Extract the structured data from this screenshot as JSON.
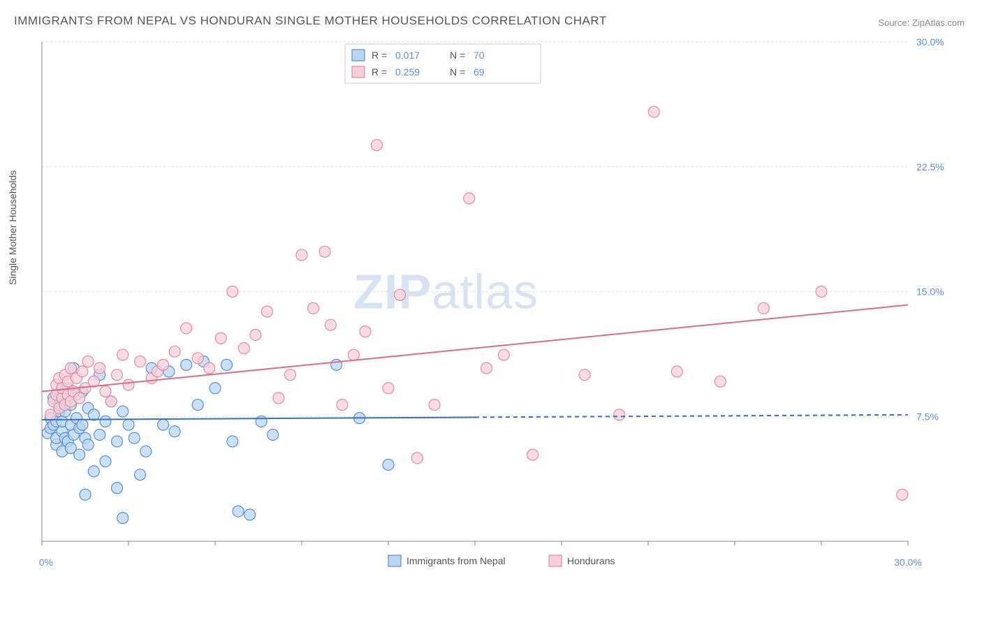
{
  "title": "IMMIGRANTS FROM NEPAL VS HONDURAN SINGLE MOTHER HOUSEHOLDS CORRELATION CHART",
  "source_label": "Source:",
  "source_name": "ZipAtlas.com",
  "y_axis_label": "Single Mother Households",
  "watermark_bold": "ZIP",
  "watermark_light": "atlas",
  "chart": {
    "type": "scatter",
    "xlim": [
      0,
      30
    ],
    "ylim": [
      0,
      30
    ],
    "x_ticks": [
      0,
      30
    ],
    "x_tick_labels": [
      "0.0%",
      "30.0%"
    ],
    "x_minor_ticks": [
      0,
      3,
      6,
      9,
      12,
      15,
      18,
      21,
      24,
      27,
      30
    ],
    "y_ticks": [
      7.5,
      15.0,
      22.5,
      30.0
    ],
    "y_tick_labels": [
      "7.5%",
      "15.0%",
      "22.5%",
      "30.0%"
    ],
    "background_color": "#ffffff",
    "grid_color": "#dddddd",
    "axis_color": "#888888",
    "label_color": "#5b8fd6",
    "series": [
      {
        "name": "Immigrants from Nepal",
        "marker_fill": "#bad6f2",
        "marker_stroke": "#5b8fd6",
        "marker_radius": 8,
        "r_value": "0.017",
        "n_value": "70",
        "trend_line": {
          "x1": 0,
          "y1": 7.3,
          "x2": 30,
          "y2": 7.6,
          "color": "#3a6fc4",
          "width": 2,
          "solid_until_x": 15
        },
        "points": [
          [
            0.2,
            6.5
          ],
          [
            0.3,
            7.4
          ],
          [
            0.3,
            6.8
          ],
          [
            0.4,
            7.0
          ],
          [
            0.4,
            8.6
          ],
          [
            0.5,
            7.2
          ],
          [
            0.5,
            5.8
          ],
          [
            0.5,
            6.2
          ],
          [
            0.6,
            7.8
          ],
          [
            0.6,
            8.2
          ],
          [
            0.6,
            8.6
          ],
          [
            0.7,
            6.6
          ],
          [
            0.7,
            7.2
          ],
          [
            0.7,
            5.4
          ],
          [
            0.8,
            7.8
          ],
          [
            0.8,
            6.2
          ],
          [
            0.8,
            8.4
          ],
          [
            0.9,
            8.8
          ],
          [
            0.9,
            6.0
          ],
          [
            0.9,
            9.2
          ],
          [
            1.0,
            7.0
          ],
          [
            1.0,
            5.6
          ],
          [
            1.0,
            8.2
          ],
          [
            1.1,
            6.4
          ],
          [
            1.1,
            10.4
          ],
          [
            1.2,
            7.4
          ],
          [
            1.2,
            8.8
          ],
          [
            1.3,
            6.8
          ],
          [
            1.3,
            5.2
          ],
          [
            1.4,
            7.0
          ],
          [
            1.4,
            9.0
          ],
          [
            1.5,
            6.2
          ],
          [
            1.5,
            2.8
          ],
          [
            1.6,
            8.0
          ],
          [
            1.6,
            5.8
          ],
          [
            1.8,
            7.6
          ],
          [
            1.8,
            4.2
          ],
          [
            2.0,
            6.4
          ],
          [
            2.0,
            10.0
          ],
          [
            2.2,
            7.2
          ],
          [
            2.2,
            4.8
          ],
          [
            2.4,
            8.4
          ],
          [
            2.6,
            6.0
          ],
          [
            2.6,
            3.2
          ],
          [
            2.8,
            7.8
          ],
          [
            2.8,
            1.4
          ],
          [
            3.0,
            7.0
          ],
          [
            3.2,
            6.2
          ],
          [
            3.4,
            4.0
          ],
          [
            3.6,
            5.4
          ],
          [
            3.8,
            10.4
          ],
          [
            4.2,
            7.0
          ],
          [
            4.4,
            10.2
          ],
          [
            4.6,
            6.6
          ],
          [
            5.0,
            10.6
          ],
          [
            5.4,
            8.2
          ],
          [
            5.6,
            10.8
          ],
          [
            6.0,
            9.2
          ],
          [
            6.4,
            10.6
          ],
          [
            6.6,
            6.0
          ],
          [
            6.8,
            1.8
          ],
          [
            7.2,
            1.6
          ],
          [
            7.6,
            7.2
          ],
          [
            8.0,
            6.4
          ],
          [
            10.2,
            10.6
          ],
          [
            11.0,
            7.4
          ],
          [
            12.0,
            4.6
          ]
        ]
      },
      {
        "name": "Hondurans",
        "marker_fill": "#f6d0d9",
        "marker_stroke": "#e28ca3",
        "marker_radius": 8,
        "r_value": "0.259",
        "n_value": "69",
        "trend_line": {
          "x1": 0,
          "y1": 9.0,
          "x2": 30,
          "y2": 14.2,
          "color": "#e06a8a",
          "width": 2
        },
        "points": [
          [
            0.3,
            7.6
          ],
          [
            0.4,
            8.4
          ],
          [
            0.5,
            8.8
          ],
          [
            0.5,
            9.4
          ],
          [
            0.6,
            8.0
          ],
          [
            0.6,
            9.8
          ],
          [
            0.7,
            8.6
          ],
          [
            0.7,
            9.2
          ],
          [
            0.8,
            8.2
          ],
          [
            0.8,
            10.0
          ],
          [
            0.9,
            8.8
          ],
          [
            0.9,
            9.6
          ],
          [
            1.0,
            8.4
          ],
          [
            1.0,
            10.4
          ],
          [
            1.1,
            9.0
          ],
          [
            1.2,
            9.8
          ],
          [
            1.3,
            8.6
          ],
          [
            1.4,
            10.2
          ],
          [
            1.5,
            9.2
          ],
          [
            1.6,
            10.8
          ],
          [
            1.8,
            9.6
          ],
          [
            2.0,
            10.4
          ],
          [
            2.2,
            9.0
          ],
          [
            2.4,
            8.4
          ],
          [
            2.6,
            10.0
          ],
          [
            2.8,
            11.2
          ],
          [
            3.0,
            9.4
          ],
          [
            3.4,
            10.8
          ],
          [
            3.8,
            9.8
          ],
          [
            4.0,
            10.2
          ],
          [
            4.2,
            10.6
          ],
          [
            4.6,
            11.4
          ],
          [
            5.0,
            12.8
          ],
          [
            5.4,
            11.0
          ],
          [
            5.8,
            10.4
          ],
          [
            6.2,
            12.2
          ],
          [
            6.6,
            15.0
          ],
          [
            7.0,
            11.6
          ],
          [
            7.4,
            12.4
          ],
          [
            7.8,
            13.8
          ],
          [
            8.2,
            8.6
          ],
          [
            8.6,
            10.0
          ],
          [
            9.0,
            17.2
          ],
          [
            9.4,
            14.0
          ],
          [
            9.8,
            17.4
          ],
          [
            10.0,
            13.0
          ],
          [
            10.4,
            8.2
          ],
          [
            10.8,
            11.2
          ],
          [
            11.2,
            12.6
          ],
          [
            11.6,
            23.8
          ],
          [
            12.0,
            9.2
          ],
          [
            12.4,
            14.8
          ],
          [
            13.0,
            5.0
          ],
          [
            13.6,
            8.2
          ],
          [
            14.2,
            28.6
          ],
          [
            14.8,
            20.6
          ],
          [
            15.4,
            10.4
          ],
          [
            16.0,
            11.2
          ],
          [
            17.0,
            5.2
          ],
          [
            18.8,
            10.0
          ],
          [
            20.0,
            7.6
          ],
          [
            21.2,
            25.8
          ],
          [
            22.0,
            10.2
          ],
          [
            23.5,
            9.6
          ],
          [
            25.0,
            14.0
          ],
          [
            27.0,
            15.0
          ],
          [
            29.8,
            2.8
          ]
        ]
      }
    ]
  },
  "legend_top": {
    "r_label": "R =",
    "n_label": "N ="
  },
  "legend_bottom": {
    "series1": "Immigrants from Nepal",
    "series2": "Hondurans"
  }
}
